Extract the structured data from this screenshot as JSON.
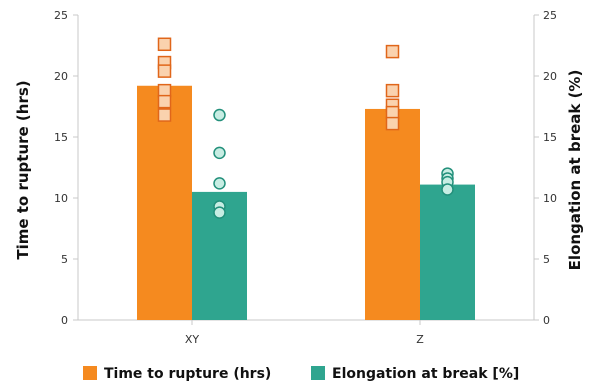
{
  "chart_data": {
    "type": "bar",
    "categories": [
      "XY",
      "Z"
    ],
    "series": [
      {
        "name": "Time to rupture (hrs)",
        "axis": "left",
        "color": "#F58A1F",
        "values": [
          19.2,
          17.3
        ],
        "points": [
          [
            22.6,
            21.1,
            20.4,
            18.8,
            17.9,
            16.8
          ],
          [
            22.0,
            18.8,
            17.6,
            17.0,
            16.1
          ]
        ],
        "point_marker": "square"
      },
      {
        "name": "Elongation at break [%]",
        "axis": "right",
        "color": "#2FA58F",
        "values": [
          10.5,
          11.1
        ],
        "points": [
          [
            16.8,
            13.7,
            11.2,
            9.3,
            8.8
          ],
          [
            12.0,
            11.6,
            11.3,
            10.7
          ]
        ],
        "point_marker": "circle"
      }
    ],
    "ylabel": "Time to rupture (hrs)",
    "y2label": "Elongation at break (%)",
    "ylim": [
      0,
      25
    ],
    "y2lim": [
      0,
      25
    ],
    "yticks": [
      "0",
      "5",
      "10",
      "15",
      "20",
      "25"
    ],
    "y2ticks": [
      "0",
      "5",
      "10",
      "15",
      "20",
      "25"
    ],
    "grid": false,
    "legend_position": "bottom"
  }
}
